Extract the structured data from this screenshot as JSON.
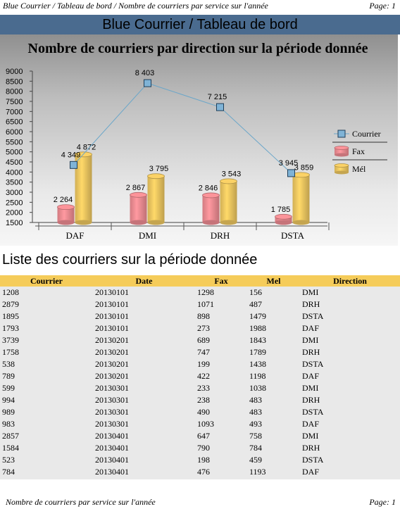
{
  "header": {
    "breadcrumb": "Blue Courrier / Tableau de bord / Nombre de courriers par service sur l'année",
    "page": "Page: 1"
  },
  "banner": {
    "title": "Blue Courrier / Tableau de bord"
  },
  "chart_data": {
    "type": "bar",
    "title": "Nombre de courriers par direction sur la période donnée",
    "categories": [
      "DAF",
      "DMI",
      "DRH",
      "DSTA"
    ],
    "ylim": [
      1500,
      9000
    ],
    "yticks": [
      "1500",
      "2000",
      "2500",
      "3000",
      "3500",
      "4000",
      "4500",
      "5000",
      "5500",
      "6000",
      "6500",
      "7000",
      "7500",
      "8000",
      "8500",
      "9000"
    ],
    "legend_position": "right",
    "series": [
      {
        "name": "Courrier",
        "kind": "line",
        "values": [
          4349,
          8403,
          7215,
          3945
        ],
        "labels": [
          "4 349",
          "8 403",
          "7 215",
          "3 945"
        ],
        "color": "#6aa6c9"
      },
      {
        "name": "Fax",
        "kind": "cylinder",
        "values": [
          2264,
          2867,
          2846,
          1785
        ],
        "labels": [
          "2 264",
          "2 867",
          "2 846",
          "1 785"
        ],
        "color": "#e9898f"
      },
      {
        "name": "Mél",
        "kind": "cylinder",
        "values": [
          4872,
          3795,
          3543,
          3859
        ],
        "labels": [
          "4 872",
          "3 795",
          "3 543",
          "3 859"
        ],
        "color": "#e8c25e"
      }
    ]
  },
  "list": {
    "title": "Liste des courriers sur la période donnée",
    "columns": [
      "Courrier",
      "Date",
      "Fax",
      "Mel",
      "Direction"
    ],
    "rows": [
      [
        "1208",
        "20130101",
        "1298",
        "156",
        "DMI"
      ],
      [
        "2879",
        "20130101",
        "1071",
        "487",
        "DRH"
      ],
      [
        "1895",
        "20130101",
        "898",
        "1479",
        "DSTA"
      ],
      [
        "1793",
        "20130101",
        "273",
        "1988",
        "DAF"
      ],
      [
        "3739",
        "20130201",
        "689",
        "1843",
        "DMI"
      ],
      [
        "1758",
        "20130201",
        "747",
        "1789",
        "DRH"
      ],
      [
        "538",
        "20130201",
        "199",
        "1438",
        "DSTA"
      ],
      [
        "789",
        "20130201",
        "422",
        "1198",
        "DAF"
      ],
      [
        "599",
        "20130301",
        "233",
        "1038",
        "DMI"
      ],
      [
        "994",
        "20130301",
        "238",
        "483",
        "DRH"
      ],
      [
        "989",
        "20130301",
        "490",
        "483",
        "DSTA"
      ],
      [
        "983",
        "20130301",
        "1093",
        "493",
        "DAF"
      ],
      [
        "2857",
        "20130401",
        "647",
        "758",
        "DMI"
      ],
      [
        "1584",
        "20130401",
        "790",
        "784",
        "DRH"
      ],
      [
        "523",
        "20130401",
        "198",
        "459",
        "DSTA"
      ],
      [
        "784",
        "20130401",
        "476",
        "1193",
        "DAF"
      ]
    ]
  },
  "footer": {
    "left": "Nombre de courriers par service sur l'année",
    "page": "Page: 1"
  }
}
